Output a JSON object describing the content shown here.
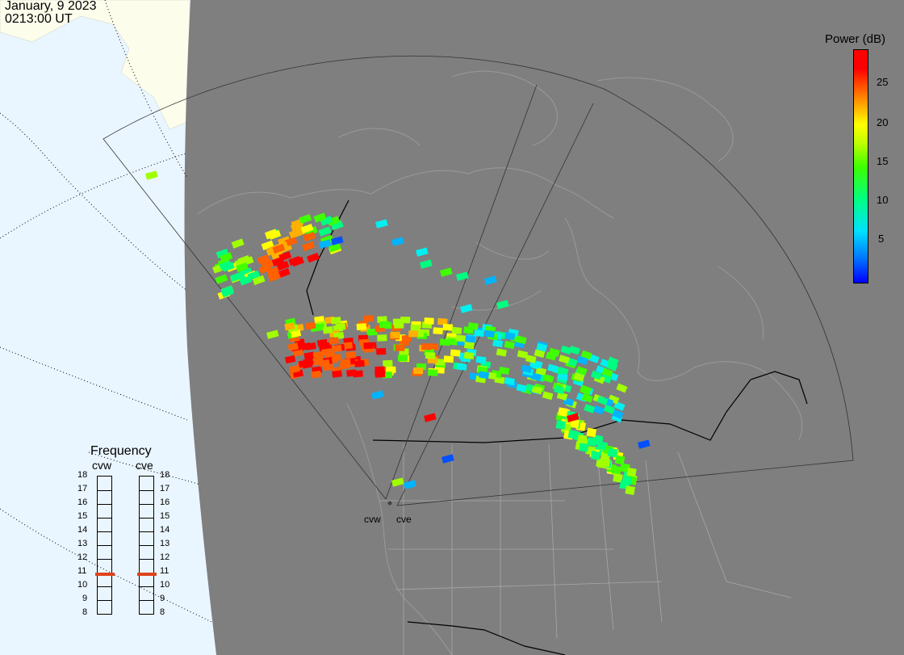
{
  "header": {
    "date": "January, 9 2023",
    "time": "0213:00 UT"
  },
  "legend": {
    "title": "Power (dB)",
    "ticks": [
      "25",
      "20",
      "15",
      "10",
      "5"
    ],
    "colors": {
      "min": "#0000ff",
      "low": "#00e0ff",
      "mid": "#40ff00",
      "high": "#ffff00",
      "max": "#ff0000"
    }
  },
  "frequency": {
    "title": "Frequency",
    "radars": [
      "cvw",
      "cve"
    ],
    "scale": [
      "18",
      "17",
      "16",
      "15",
      "14",
      "13",
      "12",
      "11",
      "10",
      "9",
      "8"
    ],
    "current": {
      "cvw": 10.8,
      "cve": 10.8
    },
    "marker_color": "#e0421b"
  },
  "sites": {
    "west": "cvw",
    "east": "cve"
  }
}
